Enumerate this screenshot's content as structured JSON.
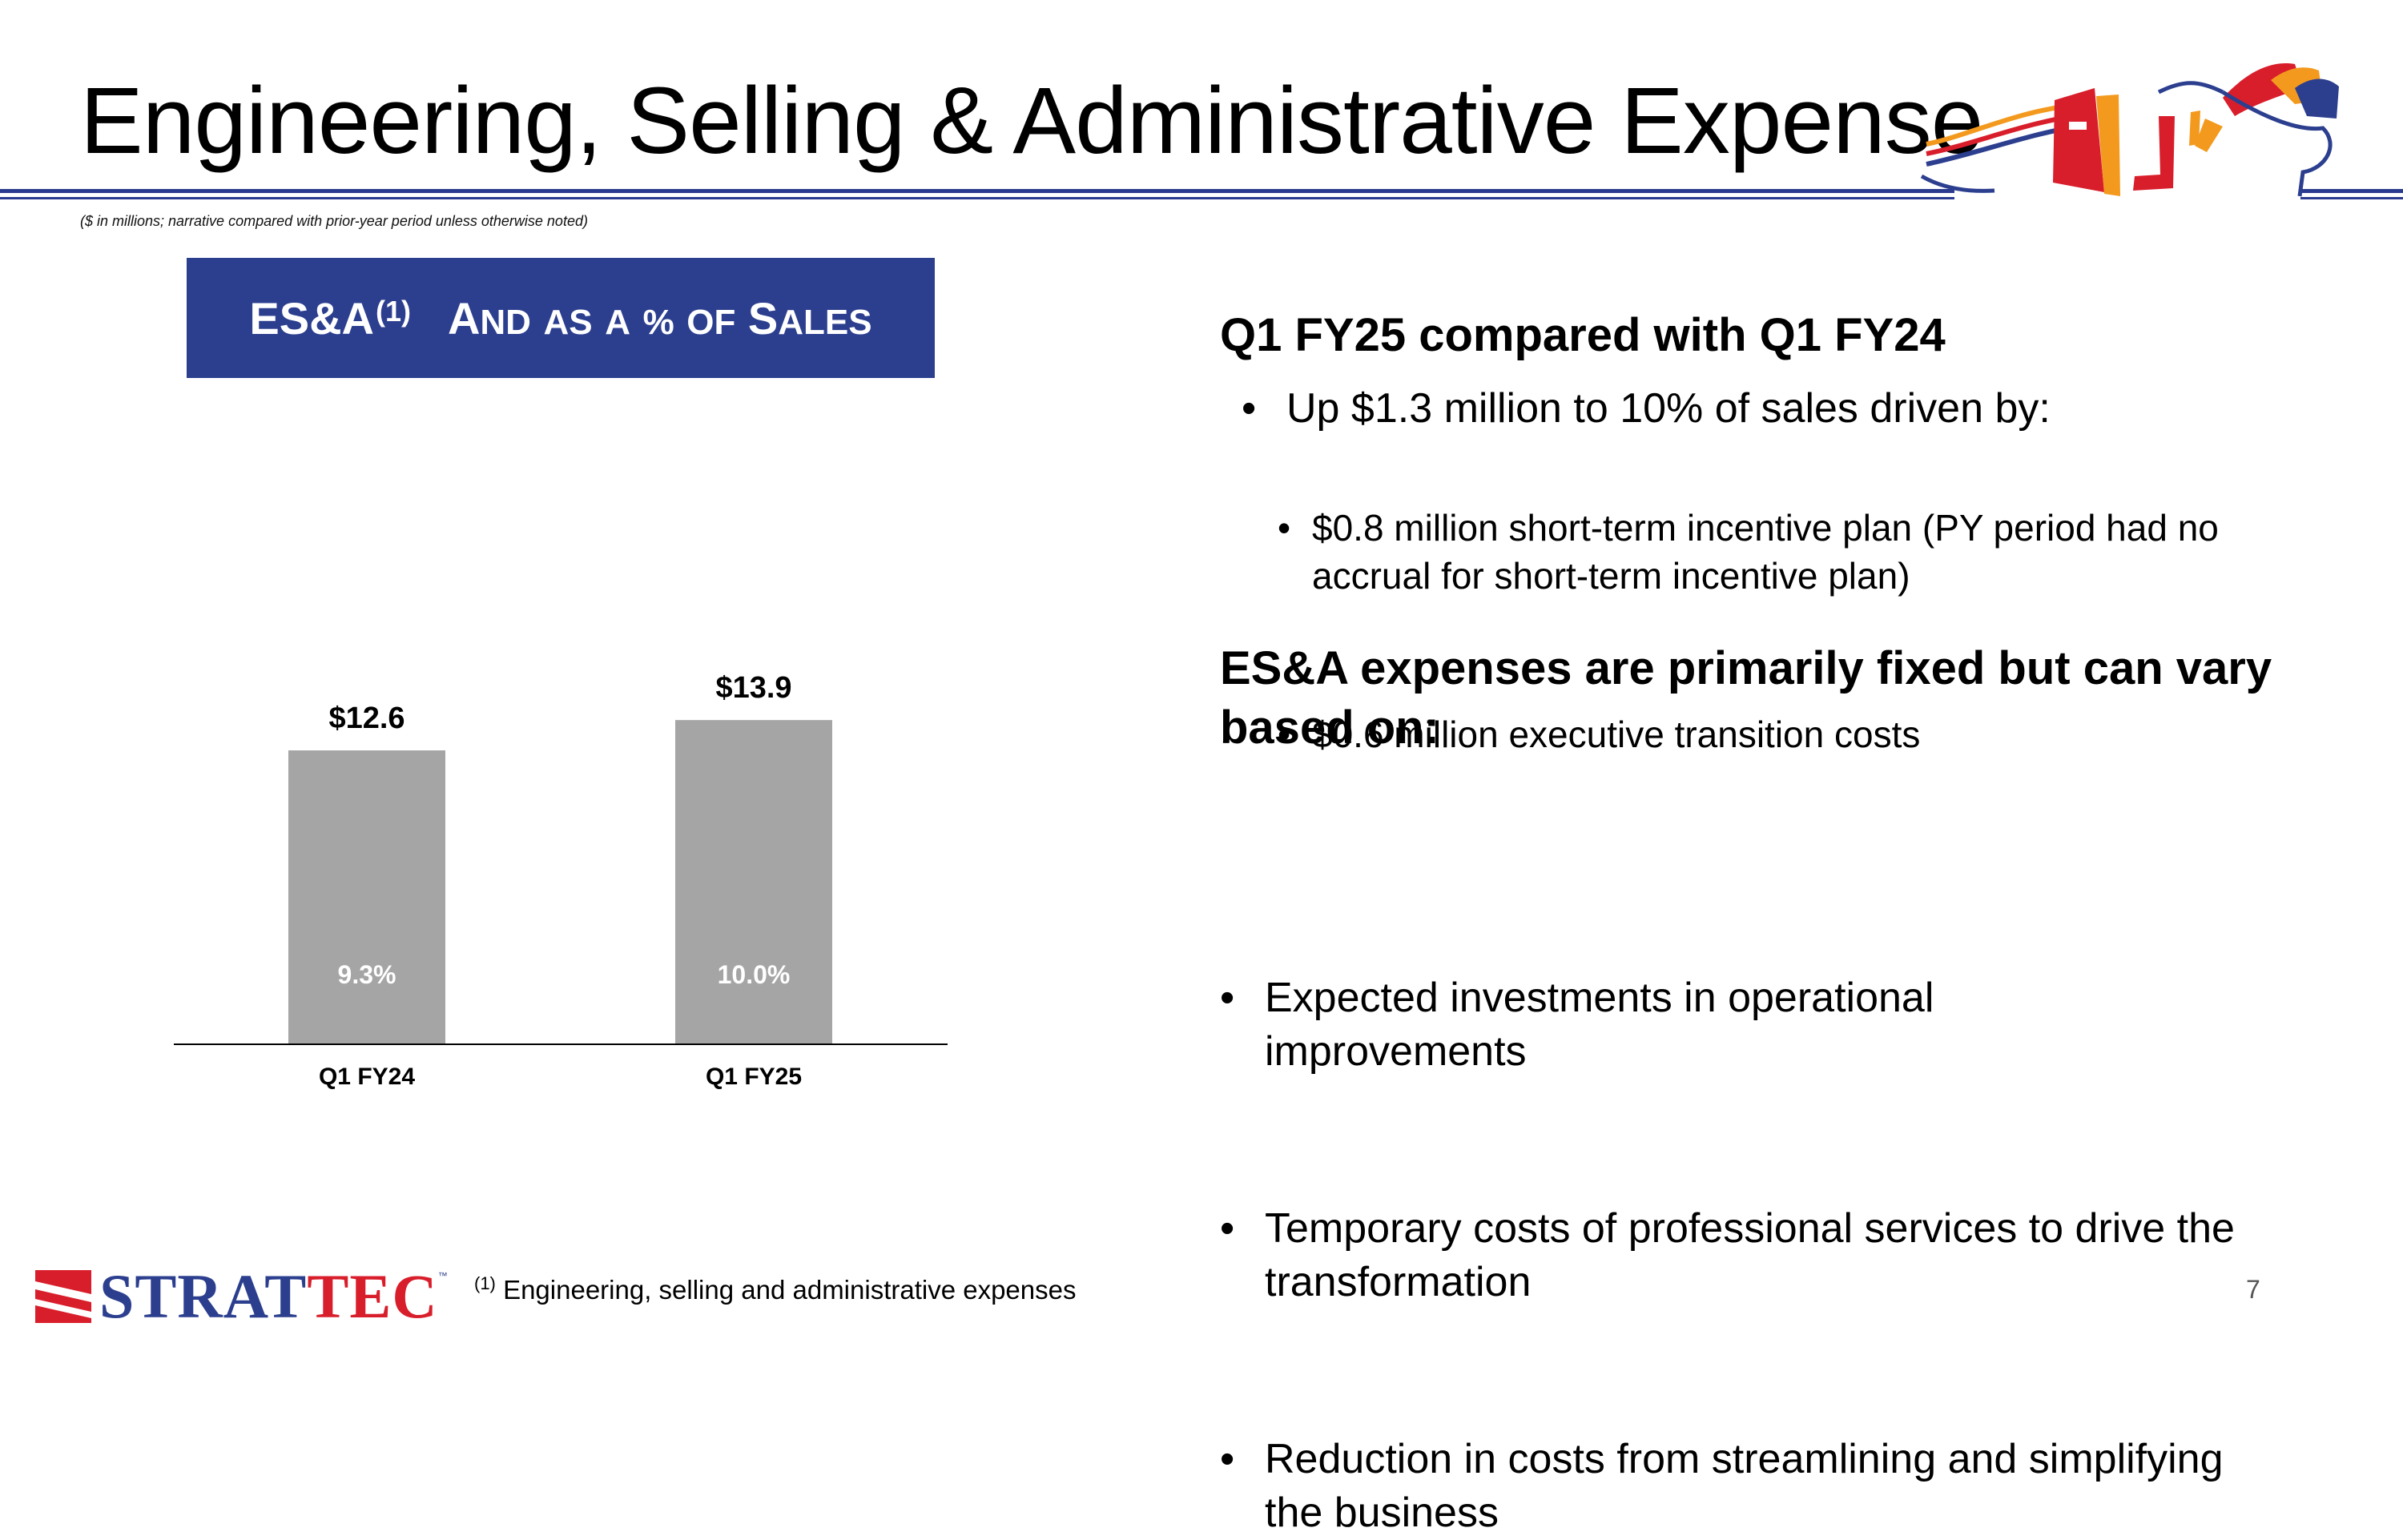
{
  "slide": {
    "title": "Engineering, Selling & Administrative Expense",
    "note": "($ in millions; narrative compared with prior-year period unless otherwise noted)",
    "page_number": "7"
  },
  "banner": {
    "main": "ES&A",
    "superscript": "(1)",
    "subtitle": "And as a % of Sales"
  },
  "chart_data": {
    "type": "bar",
    "categories": [
      "Q1 FY24",
      "Q1 FY25"
    ],
    "values": [
      12.6,
      13.9
    ],
    "value_labels": [
      "$12.6",
      "$13.9"
    ],
    "pct_of_sales": [
      "9.3%",
      "10.0%"
    ],
    "ylim": [
      0,
      20
    ],
    "bar_color": "#a5a5a5",
    "grid": false,
    "legend": "none"
  },
  "commentary": {
    "heading1": "Q1 FY25 compared with Q1 FY24",
    "point1": "Up $1.3 million to 10% of sales driven by:",
    "sub_points": [
      "$0.8 million short-term incentive plan (PY period had no accrual for short-term incentive plan)",
      "$0.6 million executive transition costs"
    ],
    "heading2": "ES&A expenses are primarily fixed but can vary based on:",
    "factors": [
      "Expected investments in operational improvements",
      "Temporary costs of professional services to drive the transformation",
      "Reduction in costs from streamlining and simplifying the business"
    ]
  },
  "footer": {
    "footnote_mark": "(1)",
    "footnote_text": "Engineering, selling and administrative expenses",
    "logo_text_a": "STRAT",
    "logo_text_b": "TEC",
    "logo_tm": "™"
  },
  "colors": {
    "brand_blue": "#2c3f8f",
    "brand_red": "#d91e2b",
    "brand_orange": "#f39a1e"
  }
}
